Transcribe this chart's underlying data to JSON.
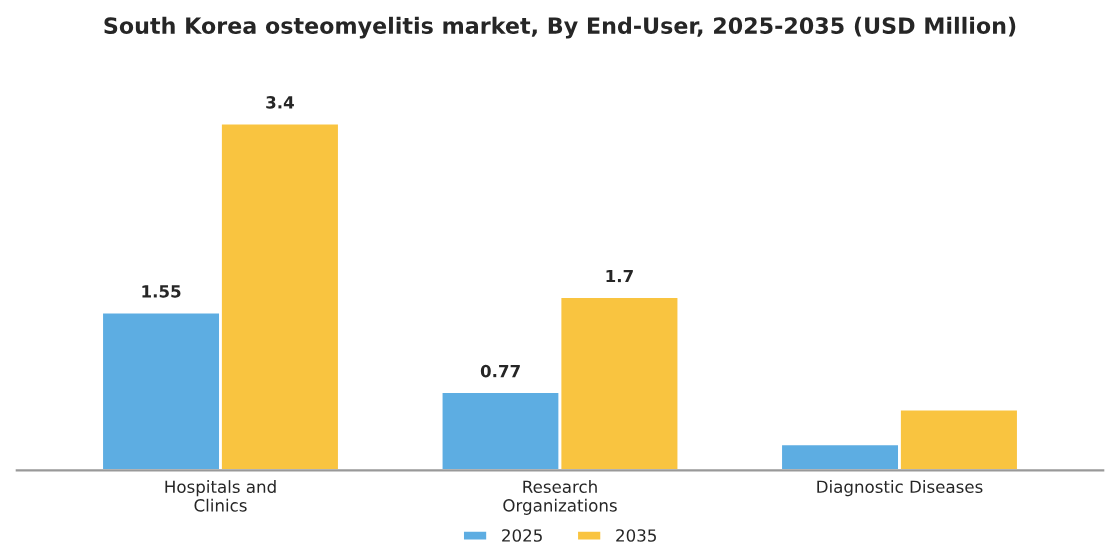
{
  "chart_data": {
    "type": "bar",
    "title": "South Korea osteomyelitis market, By End-User, 2025-2035 (USD Million)",
    "categories": [
      "Hospitals and\nClinics",
      "Research\nOrganizations",
      "Diagnostic Diseases"
    ],
    "series": [
      {
        "name": "2025",
        "color": "#5dade2",
        "values": [
          1.55,
          0.77,
          0.26
        ],
        "value_labels": [
          "1.55",
          "0.77",
          null
        ]
      },
      {
        "name": "2035",
        "color": "#f9c440",
        "values": [
          3.4,
          1.7,
          0.6
        ],
        "value_labels": [
          "3.4",
          "1.7",
          null
        ]
      }
    ],
    "legend": "bottom",
    "tick_labels": "x",
    "grid": false
  }
}
